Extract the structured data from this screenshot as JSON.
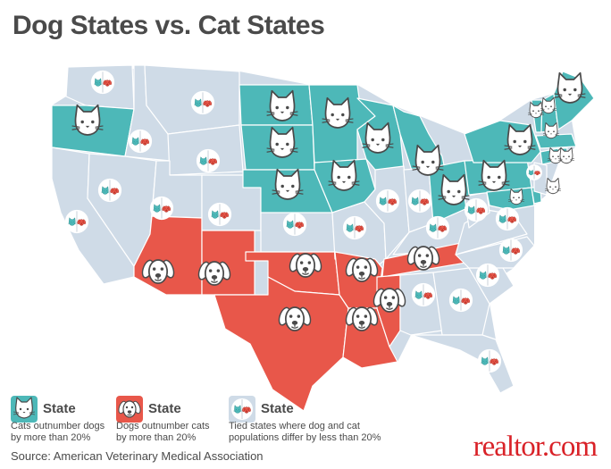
{
  "title": "Dog States vs. Cat States",
  "colors": {
    "cat": "#4db8b8",
    "dog": "#e8574a",
    "tie": "#cfdbe7",
    "border": "#ffffff"
  },
  "icons": {
    "cat": "cat-face-icon",
    "dog": "dog-face-icon",
    "tie": "cat-and-dog-icon"
  },
  "legend": [
    {
      "id": "cat",
      "label": "State",
      "desc1": "Cats outnumber dogs",
      "desc2": "by more than 20%"
    },
    {
      "id": "dog",
      "label": "State",
      "desc1": "Dogs outnumber cats",
      "desc2": "by more than 20%"
    },
    {
      "id": "tie",
      "label": "State",
      "desc1": "Tied states where dog and cat",
      "desc2": "populations differ by less than 20%"
    }
  ],
  "source": "Source: American Veterinary Medical Association",
  "brand": "realtor.com",
  "states": {
    "cat": [
      "OR",
      "ND",
      "MN",
      "SD",
      "WI",
      "NE",
      "IA",
      "MI",
      "OH",
      "PA",
      "NY",
      "VT",
      "NH",
      "ME",
      "MA",
      "CT",
      "RI",
      "MD",
      "DE"
    ],
    "dog": [
      "AZ",
      "NM",
      "OK",
      "TX",
      "AR",
      "LA",
      "MS",
      "TN"
    ],
    "tie": [
      "WA",
      "ID",
      "MT",
      "WY",
      "NV",
      "CA",
      "UT",
      "CO",
      "KS",
      "MO",
      "IL",
      "IN",
      "KY",
      "WV",
      "VA",
      "NC",
      "SC",
      "GA",
      "AL",
      "FL",
      "NJ"
    ]
  }
}
